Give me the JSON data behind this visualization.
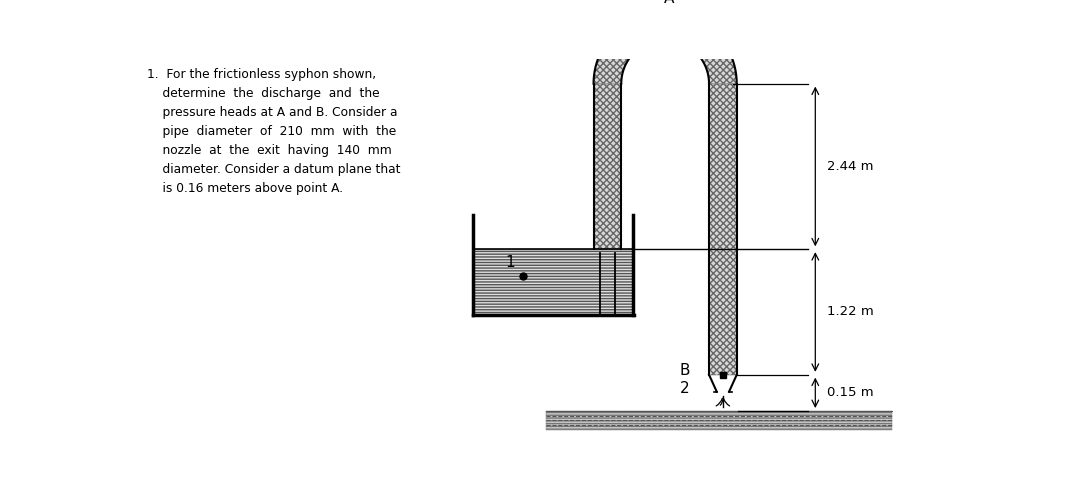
{
  "bg_color": "#ffffff",
  "line_color": "#000000",
  "dim_244": "2.44 m",
  "dim_122": "1.22 m",
  "dim_015": "0.15 m",
  "label_A": "A",
  "label_B": "B",
  "label_1": "1",
  "label_2": "2",
  "text_line1": "1.  For the frictionless syphon shown,",
  "text_line2": "    determine  the  discharge  and  the",
  "text_line3": "    pressure heads at A and B. Consider a",
  "text_line4": "    pipe  diameter  of  210  mm  with  the",
  "text_line5": "    nozzle  at  the  exit  having  140  mm",
  "text_line6": "    diameter. Consider a datum plane that",
  "text_line7": "    is 0.16 meters above point A."
}
